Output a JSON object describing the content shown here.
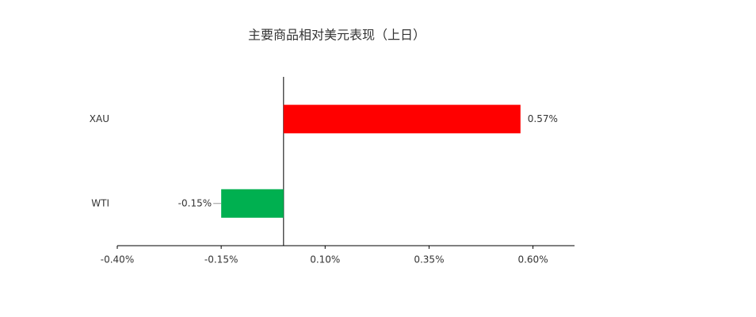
{
  "chart_data": {
    "type": "hbar",
    "title": "主要商品相对美元表现（上日）",
    "categories": [
      "XAU",
      "WTI"
    ],
    "values": [
      0.57,
      -0.15
    ],
    "value_labels": [
      "0.57%",
      "-0.15%"
    ],
    "colors": [
      "#ff0000",
      "#00b050"
    ],
    "xlim": [
      -0.4,
      0.7
    ],
    "xticks": [
      {
        "value": -0.4,
        "label": "-0.40%"
      },
      {
        "value": -0.15,
        "label": "-0.15%"
      },
      {
        "value": 0.1,
        "label": "0.10%"
      },
      {
        "value": 0.35,
        "label": "0.35%"
      },
      {
        "value": 0.6,
        "label": "0.60%"
      }
    ]
  }
}
